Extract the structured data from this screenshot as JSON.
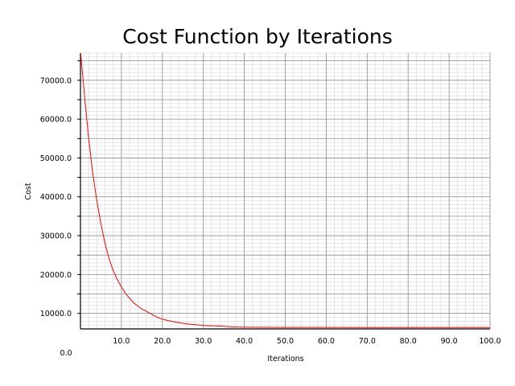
{
  "chart_data": {
    "type": "line",
    "title": "Cost Function by Iterations",
    "xlabel": "Iterations",
    "ylabel": "Cost",
    "origin_label": "0.0",
    "xlim": [
      0,
      100
    ],
    "ylim": [
      6000,
      77000
    ],
    "x_ticks": [
      10,
      20,
      30,
      40,
      50,
      60,
      70,
      80,
      90,
      100
    ],
    "x_tick_labels": [
      "10.0",
      "20.0",
      "30.0",
      "40.0",
      "50.0",
      "60.0",
      "70.0",
      "80.0",
      "90.0",
      "100.0"
    ],
    "y_ticks": [
      10000,
      20000,
      30000,
      40000,
      50000,
      60000,
      70000
    ],
    "y_tick_labels": [
      "10000.0",
      "20000.0",
      "30000.0",
      "40000.0",
      "50000.0",
      "60000.0",
      "70000.0"
    ],
    "grid": true,
    "series": [
      {
        "color": "#ff0000",
        "x": [
          0,
          1,
          2,
          3,
          4,
          5,
          6,
          7,
          8,
          9,
          10,
          11,
          12,
          13,
          14,
          15,
          16,
          17,
          18,
          19,
          20,
          22,
          24,
          26,
          28,
          30,
          32,
          34,
          36,
          38,
          40,
          45,
          50,
          60,
          70,
          80,
          90,
          100
        ],
        "y": [
          77500,
          66000,
          55000,
          46000,
          39000,
          33000,
          28000,
          24000,
          21000,
          18700,
          16800,
          15100,
          13900,
          12700,
          11900,
          11100,
          10600,
          10000,
          9400,
          8900,
          8500,
          8000,
          7600,
          7300,
          7100,
          6900,
          6800,
          6750,
          6600,
          6500,
          6450,
          6420,
          6400,
          6380,
          6370,
          6360,
          6350,
          6350
        ]
      }
    ]
  },
  "colors": {
    "line": "#ff0000",
    "minor_grid": "#dcdcdc",
    "major_grid": "#8c8c8c",
    "axis": "#000000"
  }
}
